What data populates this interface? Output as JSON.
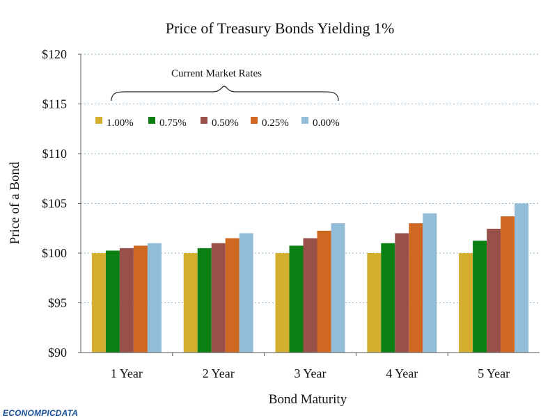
{
  "chart_data": {
    "type": "bar",
    "title": "Price of Treasury Bonds Yielding 1%",
    "xlabel": "Bond Maturity",
    "ylabel": "Price of a Bond",
    "categories": [
      "1 Year",
      "2 Year",
      "3 Year",
      "4 Year",
      "5 Year"
    ],
    "ylim": [
      90,
      120
    ],
    "yticks": [
      90,
      95,
      100,
      105,
      110,
      115,
      120
    ],
    "ytick_labels": [
      "$90",
      "$95",
      "$100",
      "$105",
      "$110",
      "$115",
      "$120"
    ],
    "grid": true,
    "legend_placement": "top-left",
    "annotation": "Current Market Rates",
    "series": [
      {
        "name": "1.00%",
        "color": "#D4AF2F",
        "values": [
          100.0,
          100.0,
          100.0,
          100.0,
          100.0
        ]
      },
      {
        "name": "0.75%",
        "color": "#0B7F12",
        "values": [
          100.25,
          100.5,
          100.75,
          101.0,
          101.25
        ]
      },
      {
        "name": "0.50%",
        "color": "#98504B",
        "values": [
          100.5,
          101.0,
          101.5,
          102.0,
          102.45
        ]
      },
      {
        "name": "0.25%",
        "color": "#CF6821",
        "values": [
          100.75,
          101.5,
          102.25,
          103.0,
          103.7
        ]
      },
      {
        "name": "0.00%",
        "color": "#93BCD6",
        "values": [
          101.0,
          102.0,
          103.0,
          104.0,
          105.0
        ]
      }
    ]
  },
  "watermark": {
    "text": "ECONOMPICDATA"
  }
}
